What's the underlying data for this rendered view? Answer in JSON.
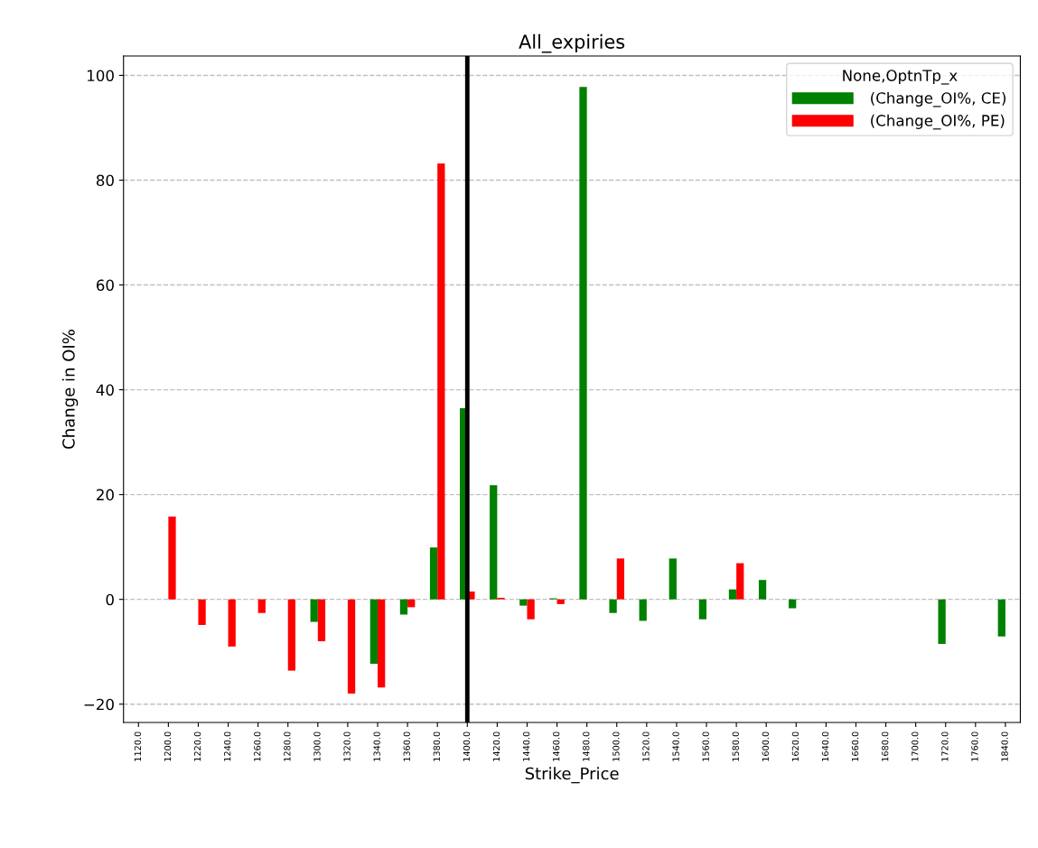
{
  "chart_data": {
    "type": "bar",
    "title": "All_expiries",
    "xlabel": "Strike_Price",
    "ylabel": "Change in OI%",
    "legend_title": "None,OptnTp_x",
    "categories": [
      "1120.0",
      "1200.0",
      "1220.0",
      "1240.0",
      "1260.0",
      "1280.0",
      "1300.0",
      "1320.0",
      "1340.0",
      "1360.0",
      "1380.0",
      "1400.0",
      "1420.0",
      "1440.0",
      "1460.0",
      "1480.0",
      "1500.0",
      "1520.0",
      "1540.0",
      "1560.0",
      "1580.0",
      "1600.0",
      "1620.0",
      "1640.0",
      "1660.0",
      "1680.0",
      "1700.0",
      "1720.0",
      "1760.0",
      "1840.0"
    ],
    "series": [
      {
        "name": "(Change_OI%, CE)",
        "color": "#008000",
        "values": [
          null,
          null,
          null,
          null,
          null,
          null,
          -4.3,
          null,
          -12.3,
          -2.9,
          9.9,
          36.5,
          21.8,
          -1.2,
          0.2,
          97.8,
          -2.6,
          -4.1,
          7.8,
          -3.8,
          1.9,
          3.7,
          -1.7,
          null,
          null,
          null,
          null,
          -8.5,
          null,
          -7.1
        ]
      },
      {
        "name": "(Change_OI%, PE)",
        "color": "#ff0000",
        "values": [
          null,
          15.8,
          -4.9,
          -9.0,
          -2.6,
          -13.6,
          -8.0,
          -18.0,
          -16.8,
          -1.5,
          83.2,
          1.5,
          0.3,
          -3.8,
          -0.9,
          null,
          7.8,
          null,
          null,
          null,
          6.9,
          null,
          null,
          null,
          null,
          null,
          null,
          null,
          null,
          null
        ]
      }
    ],
    "ylim": [
      -23.5,
      103.7
    ],
    "yticks": [
      -20,
      0,
      20,
      40,
      60,
      80,
      100
    ],
    "grid": "y",
    "legend": "top right",
    "ref_lines": [
      {
        "axis": "x",
        "value": "1400.0",
        "color": "#000000",
        "line_style": "solid"
      }
    ]
  }
}
